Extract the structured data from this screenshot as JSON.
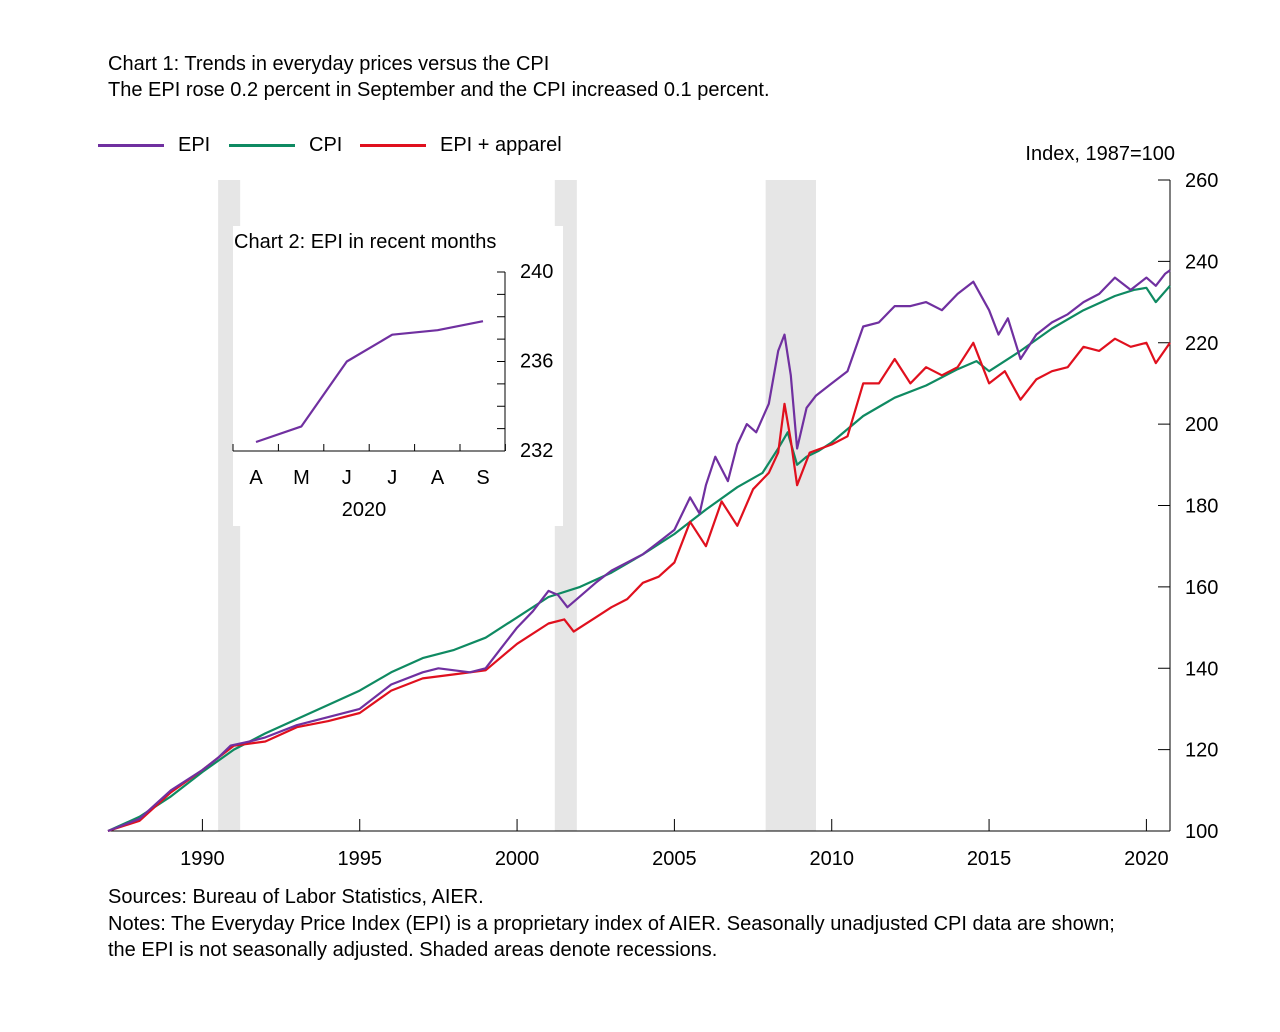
{
  "header": {
    "title": "Chart 1: Trends in everyday prices versus the CPI",
    "subtitle": "The EPI rose 0.2 percent in September and the CPI increased 0.1 percent."
  },
  "footer": {
    "sources": "Sources: Bureau of Labor Statistics, AIER.",
    "notes_line1": "Notes: The Everyday Price Index (EPI) is a proprietary index of AIER. Seasonally unadjusted CPI data are shown;",
    "notes_line2": "the EPI is not seasonally adjusted. Shaded areas denote recessions."
  },
  "colors": {
    "EPI": "#7030a0",
    "CPI": "#0f8a62",
    "EPI + apparel": "#e0101e",
    "recession": "#e6e6e6"
  },
  "chart_data": [
    {
      "type": "line",
      "title": "Chart 1: Trends in everyday prices versus the CPI",
      "subtitle": "The EPI rose 0.2 percent in September and the CPI increased 0.1 percent.",
      "ylabel": "Index, 1987=100",
      "xlim": [
        1987.0,
        2020.75
      ],
      "ylim": [
        100,
        260
      ],
      "x_ticks": [
        1990,
        1995,
        2000,
        2005,
        2010,
        2015,
        2020
      ],
      "y_ticks": [
        100,
        120,
        140,
        160,
        180,
        200,
        220,
        240,
        260
      ],
      "grid": false,
      "legend": "top-left",
      "recessions": [
        [
          1990.5,
          1991.2
        ],
        [
          2001.2,
          2001.9
        ],
        [
          2007.9,
          2009.5
        ]
      ],
      "series": [
        {
          "name": "EPI",
          "color": "#7030a0",
          "x": [
            1987.0,
            1988.0,
            1989.0,
            1990.0,
            1990.5,
            1990.9,
            1991.5,
            1992.0,
            1993.0,
            1994.0,
            1995.0,
            1996.0,
            1997.0,
            1997.5,
            1998.5,
            1999.0,
            1999.5,
            2000.0,
            2000.5,
            2001.0,
            2001.3,
            2001.6,
            2001.9,
            2002.5,
            2003.0,
            2003.5,
            2004.0,
            2004.5,
            2005.0,
            2005.5,
            2005.8,
            2006.0,
            2006.3,
            2006.7,
            2007.0,
            2007.3,
            2007.6,
            2008.0,
            2008.3,
            2008.5,
            2008.7,
            2008.9,
            2009.2,
            2009.5,
            2010.0,
            2010.5,
            2011.0,
            2011.5,
            2012.0,
            2012.5,
            2013.0,
            2013.5,
            2014.0,
            2014.5,
            2015.0,
            2015.3,
            2015.6,
            2016.0,
            2016.5,
            2017.0,
            2017.5,
            2018.0,
            2018.5,
            2019.0,
            2019.5,
            2020.0,
            2020.3,
            2020.6,
            2020.75
          ],
          "values": [
            100,
            103,
            110,
            115,
            118,
            121,
            122,
            123,
            126,
            128,
            130,
            136,
            139,
            140,
            139,
            140,
            145,
            150,
            154,
            159,
            158,
            155,
            157,
            161,
            164,
            166,
            168,
            171,
            174,
            182,
            178,
            185,
            192,
            186,
            195,
            200,
            198,
            205,
            218,
            222,
            212,
            194,
            204,
            207,
            210,
            213,
            224,
            225,
            229,
            229,
            230,
            228,
            232,
            235,
            228,
            222,
            226,
            216,
            222,
            225,
            227,
            230,
            232,
            236,
            233,
            236,
            234,
            237,
            237.8
          ]
        },
        {
          "name": "CPI",
          "color": "#0f8a62",
          "x": [
            1987.0,
            1988.0,
            1989.0,
            1990.0,
            1991.0,
            1992.0,
            1993.0,
            1994.0,
            1995.0,
            1996.0,
            1997.0,
            1998.0,
            1999.0,
            2000.0,
            2001.0,
            2002.0,
            2003.0,
            2004.0,
            2005.0,
            2006.0,
            2007.0,
            2007.8,
            2008.3,
            2008.6,
            2008.9,
            2009.2,
            2009.6,
            2010.0,
            2011.0,
            2012.0,
            2013.0,
            2014.0,
            2014.6,
            2015.0,
            2016.0,
            2017.0,
            2018.0,
            2019.0,
            2019.6,
            2020.0,
            2020.3,
            2020.75
          ],
          "values": [
            100,
            103.5,
            108.5,
            114.5,
            120,
            124,
            127.5,
            131,
            134.5,
            139,
            142.5,
            144.5,
            147.5,
            152.5,
            157.5,
            160,
            163.5,
            168,
            173,
            179,
            184.5,
            188,
            194,
            198,
            190,
            192,
            193.5,
            195.5,
            202,
            206.5,
            209.5,
            213.5,
            215.5,
            213,
            218,
            223.5,
            228,
            231.5,
            233,
            233.5,
            230,
            234
          ]
        },
        {
          "name": "EPI + apparel",
          "color": "#e0101e",
          "x": [
            1987.0,
            1988.0,
            1989.0,
            1990.0,
            1990.5,
            1991.0,
            1992.0,
            1993.0,
            1994.0,
            1995.0,
            1996.0,
            1997.0,
            1998.0,
            1999.0,
            2000.0,
            2001.0,
            2001.5,
            2001.8,
            2002.5,
            2003.0,
            2003.5,
            2004.0,
            2004.5,
            2005.0,
            2005.5,
            2006.0,
            2006.5,
            2007.0,
            2007.5,
            2008.0,
            2008.3,
            2008.5,
            2008.7,
            2008.9,
            2009.3,
            2010.0,
            2010.5,
            2011.0,
            2011.5,
            2012.0,
            2012.5,
            2013.0,
            2013.5,
            2014.0,
            2014.5,
            2015.0,
            2015.5,
            2016.0,
            2016.5,
            2017.0,
            2017.5,
            2018.0,
            2018.5,
            2019.0,
            2019.5,
            2020.0,
            2020.3,
            2020.75
          ],
          "values": [
            100,
            102.5,
            109.5,
            115,
            118,
            121,
            122,
            125.5,
            127,
            129,
            134.5,
            137.5,
            138.5,
            139.5,
            146,
            151,
            152,
            149,
            152.5,
            155,
            157,
            161,
            162.5,
            166,
            176,
            170,
            181,
            175,
            184,
            188,
            193,
            205,
            196,
            185,
            193,
            195,
            197,
            210,
            210,
            216,
            210,
            214,
            212,
            214,
            220,
            210,
            213,
            206,
            211,
            213,
            214,
            219,
            218,
            221,
            219,
            220,
            215,
            220
          ]
        }
      ]
    },
    {
      "type": "line",
      "title": "Chart 2: EPI in recent months",
      "xlabel": "2020",
      "categories": [
        "A",
        "M",
        "J",
        "J",
        "A",
        "S"
      ],
      "ylim": [
        232,
        240
      ],
      "y_ticks": [
        232,
        236,
        240
      ],
      "grid": false,
      "series": [
        {
          "name": "EPI",
          "color": "#7030a0",
          "values": [
            232.4,
            233.1,
            236.0,
            237.2,
            237.4,
            237.8
          ]
        }
      ]
    }
  ]
}
